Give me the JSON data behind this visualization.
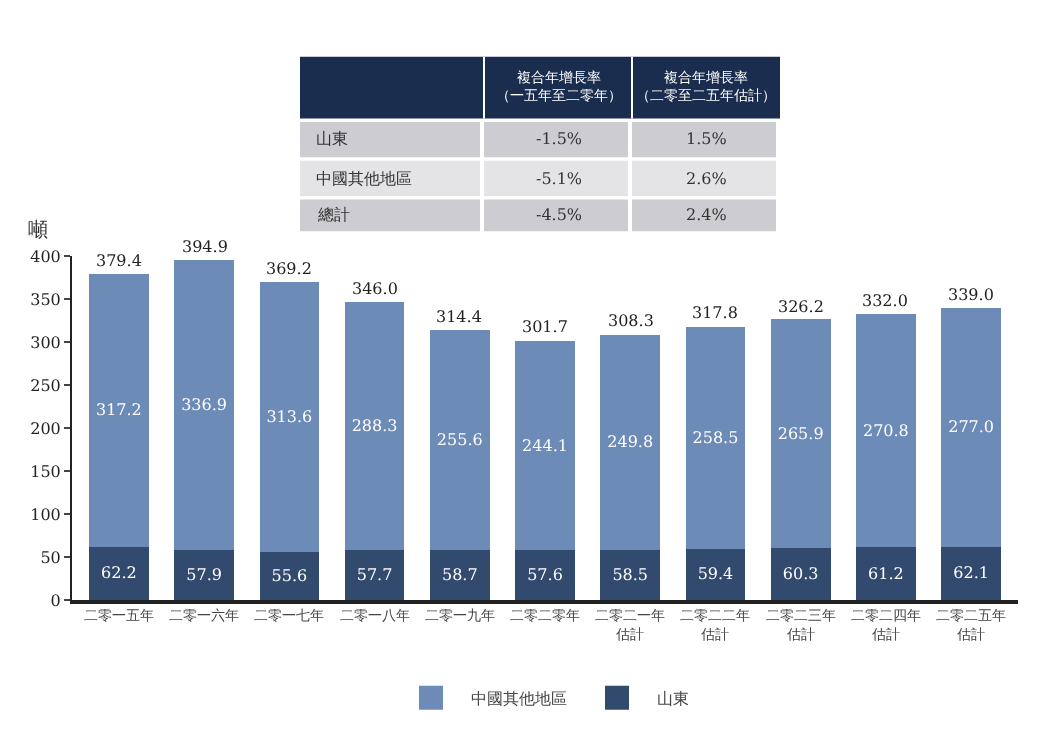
{
  "chart_data": {
    "type": "bar",
    "stacked": true,
    "ylabel": "噸",
    "categories": [
      "二零一五年",
      "二零一六年",
      "二零一七年",
      "二零一八年",
      "二零一九年",
      "二零二零年",
      "二零二一年估計",
      "二零二二年估計",
      "二零二三年估計",
      "二零二四年估計",
      "二零二五年估計"
    ],
    "series": [
      {
        "name": "山東",
        "color": "#324a6e",
        "values": [
          62.2,
          57.9,
          55.6,
          57.7,
          58.7,
          57.6,
          58.5,
          59.4,
          60.3,
          61.2,
          62.1
        ],
        "value_labels": [
          "62.2",
          "57.9",
          "55.6",
          "57.7",
          "58.7",
          "57.6",
          "58.5",
          "59.4",
          "60.3",
          "61.2",
          "62.1"
        ]
      },
      {
        "name": "中國其他地區",
        "color": "#6d8bb7",
        "values": [
          317.2,
          336.9,
          313.6,
          288.3,
          255.6,
          244.1,
          249.8,
          258.5,
          265.9,
          270.8,
          277.0
        ],
        "value_labels": [
          "317.2",
          "336.9",
          "313.6",
          "288.3",
          "255.6",
          "244.1",
          "249.8",
          "258.5",
          "265.9",
          "270.8",
          "277.0"
        ]
      }
    ],
    "totals": [
      "379.4",
      "394.9",
      "369.2",
      "346.0",
      "314.4",
      "301.7",
      "308.3",
      "317.8",
      "326.2",
      "332.0",
      "339.0"
    ],
    "ylim": [
      0,
      400
    ],
    "yticks": [
      0,
      50,
      100,
      150,
      200,
      250,
      300,
      350,
      400
    ],
    "legend": "bottom",
    "annotations": [
      "複合年增長率（一五年至二零年）",
      "複合年增長率（二零至二五年估計）",
      "山東",
      "-1.5%",
      "1.5%",
      "中國其他地區",
      "-5.1%",
      "2.6%",
      "總計",
      "-4.5%",
      "2.4%"
    ]
  }
}
